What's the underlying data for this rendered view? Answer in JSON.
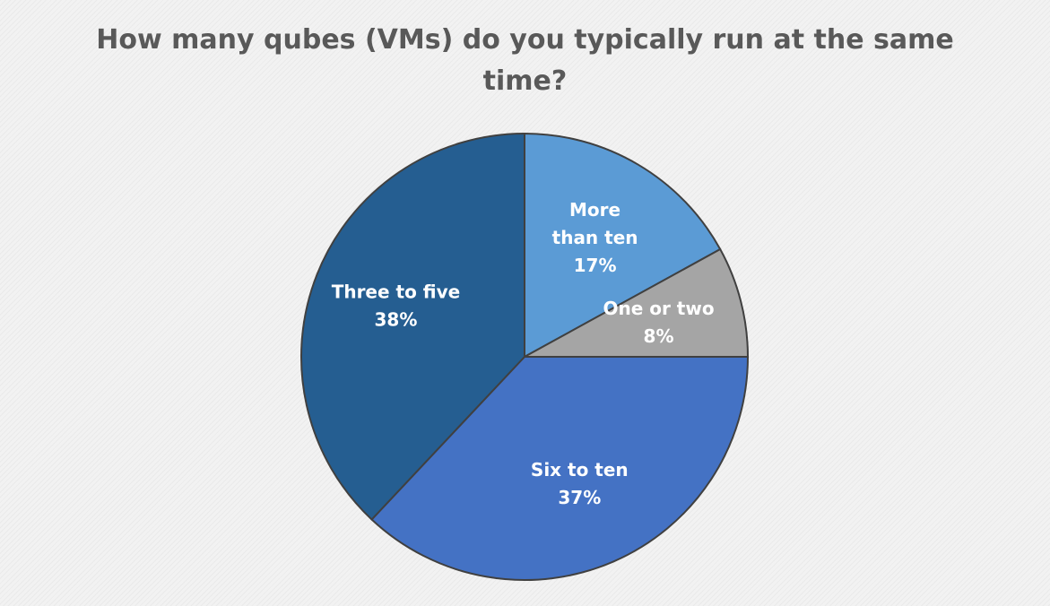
{
  "chart_data": {
    "type": "pie",
    "title": "How many qubes (VMs) do you typically run at the same time?",
    "slices": [
      {
        "label_lines": [
          "More",
          "than ten"
        ],
        "value": 17,
        "display": "17%",
        "color": "#5b9bd5"
      },
      {
        "label_lines": [
          "One or two"
        ],
        "value": 8,
        "display": "8%",
        "color": "#a5a5a5"
      },
      {
        "label_lines": [
          "Six to ten"
        ],
        "value": 37,
        "display": "37%",
        "color": "#4472c4"
      },
      {
        "label_lines": [
          "Three to five"
        ],
        "value": 38,
        "display": "38%",
        "color": "#255e91"
      }
    ],
    "start": "12 o'clock",
    "direction": "clockwise",
    "legend": "none",
    "data_labels": "inside"
  }
}
